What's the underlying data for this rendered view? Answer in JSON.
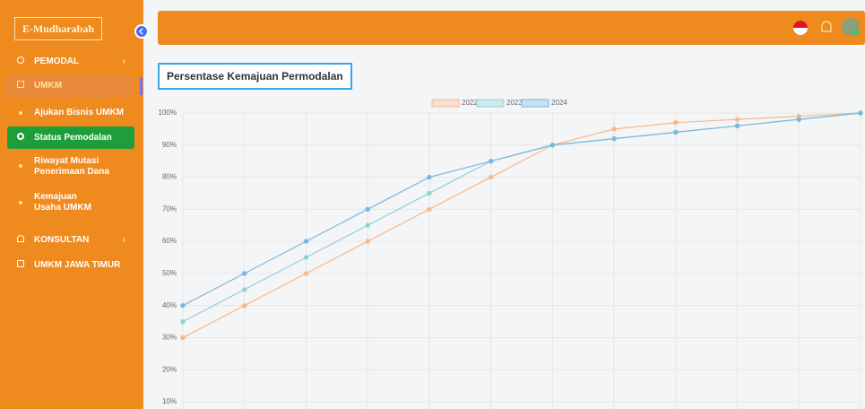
{
  "sidebar": {
    "logo": "E-Mudharabah",
    "menu": [
      "PEMODAL",
      "UMKM",
      "Ajukan Bisnis UMKM",
      "Status Pemodalan",
      "Riwayat Mutasi Penerimaan Dana",
      "Kemajuan Usaha UMKM",
      "KONSULTAN",
      "UMKM JAWA TIMUR"
    ]
  },
  "card_title": "Persentase Kemajuan Permodalan",
  "chart_data": {
    "type": "line",
    "categories": [
      null,
      null,
      null,
      null,
      null,
      null,
      null,
      null,
      null,
      null,
      null,
      null
    ],
    "series": [
      {
        "name": "2022",
        "color": "#f5b98a",
        "values": [
          30,
          40,
          50,
          60,
          70,
          80,
          90,
          95,
          97,
          98,
          99,
          100
        ]
      },
      {
        "name": "2023",
        "color": "#8fd3d3",
        "values": [
          35,
          45,
          55,
          65,
          75,
          85,
          90,
          92,
          94,
          96,
          98,
          100
        ]
      },
      {
        "name": "2024",
        "color": "#7ab8e0",
        "values": [
          40,
          50,
          60,
          70,
          80,
          85,
          90,
          92,
          94,
          96,
          98,
          100
        ]
      }
    ],
    "ylim": [
      10,
      100
    ],
    "yticks": [
      {
        "value": 10,
        "label": "10%"
      },
      {
        "value": 20,
        "label": "20%"
      },
      {
        "value": 30,
        "label": "30%"
      },
      {
        "value": 40,
        "label": "40%"
      },
      {
        "value": 50,
        "label": "50%"
      },
      {
        "value": 60,
        "label": "60%"
      },
      {
        "value": 70,
        "label": "70%"
      },
      {
        "value": 80,
        "label": "80%"
      },
      {
        "value": 90,
        "label": "90%"
      },
      {
        "value": 100,
        "label": "100%"
      }
    ],
    "grid": true,
    "legend": "top"
  }
}
